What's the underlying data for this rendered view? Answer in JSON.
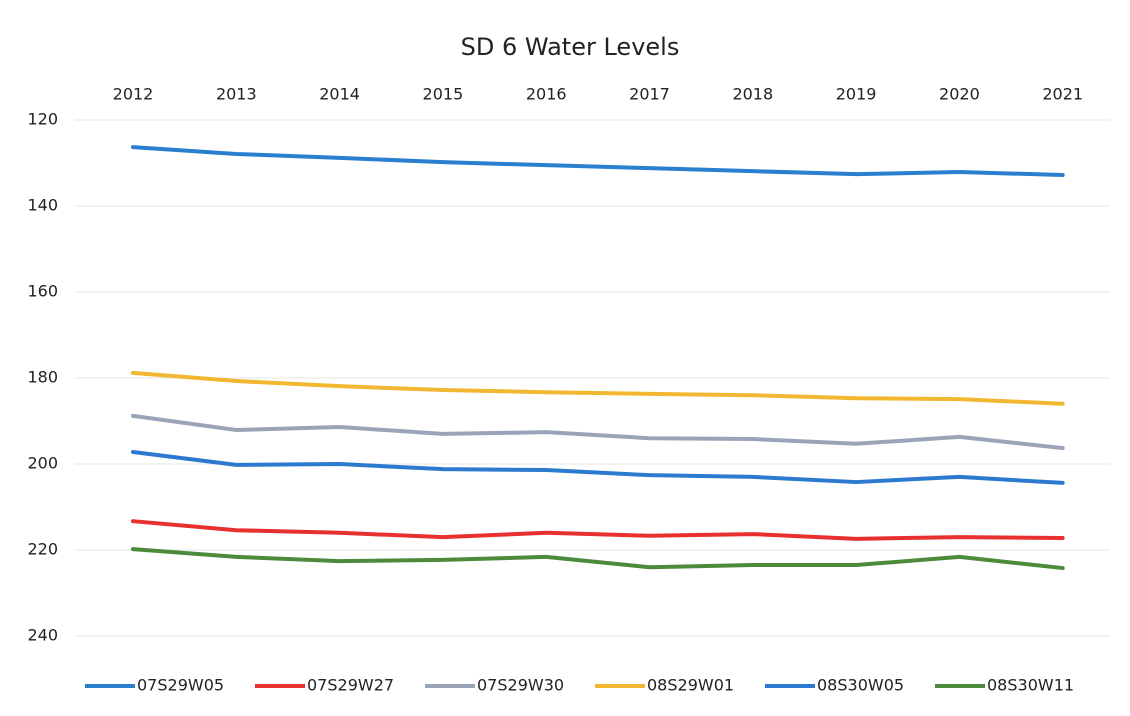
{
  "chart_data": {
    "type": "line",
    "title": "SD 6 Water Levels",
    "categories": [
      "2012",
      "2013",
      "2014",
      "2015",
      "2016",
      "2017",
      "2018",
      "2019",
      "2020",
      "2021"
    ],
    "series": [
      {
        "name": "07S29W05",
        "color": "#2a7fcf",
        "values": [
          126.3,
          127.9,
          128.8,
          129.8,
          130.5,
          131.2,
          131.9,
          132.6,
          132.1,
          132.8
        ]
      },
      {
        "name": "07S29W27",
        "color": "#e8302e",
        "values": [
          213.3,
          215.4,
          216.0,
          217.0,
          216.0,
          216.7,
          216.3,
          217.4,
          217.0,
          217.2
        ]
      },
      {
        "name": "07S29W30",
        "color": "#9aa4b8",
        "values": [
          188.8,
          192.1,
          191.4,
          193.0,
          192.6,
          194.0,
          194.2,
          195.3,
          193.7,
          196.3
        ]
      },
      {
        "name": "08S29W01",
        "color": "#f2b730",
        "values": [
          178.8,
          180.7,
          181.9,
          182.8,
          183.3,
          183.7,
          184.0,
          184.7,
          184.9,
          186.0
        ]
      },
      {
        "name": "08S30W05",
        "color": "#2b7ad0",
        "values": [
          197.2,
          200.2,
          200.0,
          201.2,
          201.4,
          202.6,
          203.0,
          204.2,
          203.0,
          204.4
        ]
      },
      {
        "name": "08S30W11",
        "color": "#4d8a3c",
        "values": [
          219.8,
          221.6,
          222.6,
          222.3,
          221.6,
          224.0,
          223.5,
          223.5,
          221.6,
          224.2
        ]
      }
    ],
    "ylim": [
      240,
      120
    ],
    "yticks": [
      120,
      140,
      160,
      180,
      200,
      220,
      240
    ],
    "grid": true
  }
}
